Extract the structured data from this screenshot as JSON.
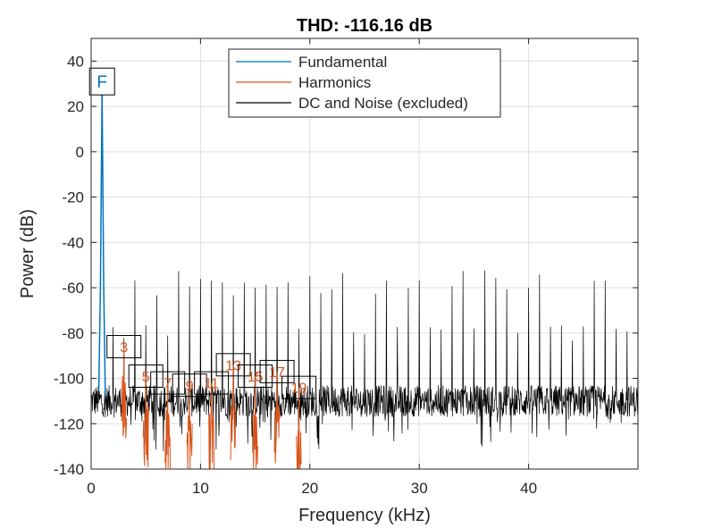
{
  "chart_data": {
    "type": "line",
    "title": "THD: -116.16 dB",
    "xlabel": "Frequency (kHz)",
    "ylabel": "Power (dB)",
    "xlim": [
      0,
      50
    ],
    "ylim": [
      -140,
      50
    ],
    "xticks": [
      0,
      10,
      20,
      30,
      40
    ],
    "yticks": [
      40,
      20,
      0,
      -20,
      -40,
      -60,
      -80,
      -100,
      -120,
      -140
    ],
    "grid": true,
    "legend_position": "top-center",
    "series": [
      {
        "name": "Fundamental",
        "color": "#0072bd",
        "x": [
          0.7,
          0.85,
          1.0,
          1.15,
          1.3
        ],
        "y": [
          -105,
          -60,
          27,
          -60,
          -108
        ]
      },
      {
        "name": "Harmonics",
        "color": "#d95319",
        "harmonics": [
          {
            "label": "3",
            "freq_khz": 3.0,
            "power_db": -86
          },
          {
            "label": "5",
            "freq_khz": 5.0,
            "power_db": -99
          },
          {
            "label": "7",
            "freq_khz": 7.0,
            "power_db": -102
          },
          {
            "label": "9",
            "freq_khz": 9.0,
            "power_db": -103
          },
          {
            "label": "11",
            "freq_khz": 11.0,
            "power_db": -102
          },
          {
            "label": "13",
            "freq_khz": 13.0,
            "power_db": -94
          },
          {
            "label": "15",
            "freq_khz": 15.0,
            "power_db": -99
          },
          {
            "label": "17",
            "freq_khz": 17.0,
            "power_db": -97
          },
          {
            "label": "19",
            "freq_khz": 19.0,
            "power_db": -104
          }
        ]
      },
      {
        "name": "DC and Noise (excluded)",
        "color": "#000000",
        "noise_floor_db": -110,
        "noise_spread_db": 14,
        "spur_spacing_khz": 1.0,
        "spur_peaks_db": [
          -60,
          -55,
          -80
        ]
      }
    ],
    "annotations": [
      {
        "label": "F",
        "freq_khz": 1.0,
        "power_db": 31,
        "color": "#0072bd"
      }
    ]
  }
}
